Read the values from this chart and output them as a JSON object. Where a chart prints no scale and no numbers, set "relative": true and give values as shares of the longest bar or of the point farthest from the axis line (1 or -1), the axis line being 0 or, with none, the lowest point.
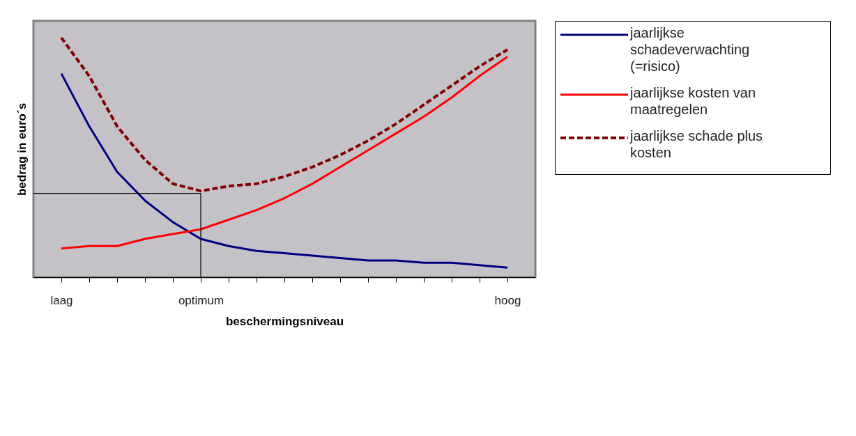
{
  "chart_data": {
    "type": "line",
    "relative": true,
    "xlabel": "beschermingsniveau",
    "ylabel": "bedrag in euro´s",
    "categories": [
      "laag",
      null,
      null,
      null,
      null,
      "optimum",
      null,
      null,
      null,
      null,
      null,
      null,
      null,
      null,
      null,
      null,
      "hoog"
    ],
    "series": [
      {
        "name": "jaarlijkse schadeverwachting (=risico)",
        "color": "#000080",
        "line_style": "solid",
        "values": [
          0.85,
          0.63,
          0.44,
          0.32,
          0.23,
          0.16,
          0.13,
          0.11,
          0.1,
          0.09,
          0.08,
          0.07,
          0.07,
          0.06,
          0.06,
          0.05,
          0.04
        ]
      },
      {
        "name": "jaarlijkse kosten van maatregelen",
        "color": "#ff0000",
        "line_style": "solid",
        "values": [
          0.12,
          0.13,
          0.13,
          0.16,
          0.18,
          0.2,
          0.24,
          0.28,
          0.33,
          0.39,
          0.46,
          0.53,
          0.6,
          0.67,
          0.75,
          0.84,
          0.92
        ]
      },
      {
        "name": "jaarlijkse schade plus kosten",
        "color": "#800000",
        "line_style": "dashed",
        "values": [
          1.0,
          0.84,
          0.63,
          0.49,
          0.39,
          0.36,
          0.38,
          0.39,
          0.42,
          0.46,
          0.51,
          0.57,
          0.64,
          0.72,
          0.8,
          0.88,
          0.95
        ]
      }
    ],
    "ref_lines": [
      {
        "axis": "y",
        "value": 0.35,
        "label": null,
        "color": "#000000"
      },
      {
        "axis": "x",
        "value": "optimum",
        "label": null,
        "color": "#000000"
      }
    ],
    "legend": "right",
    "grid": false,
    "marker": "none"
  }
}
